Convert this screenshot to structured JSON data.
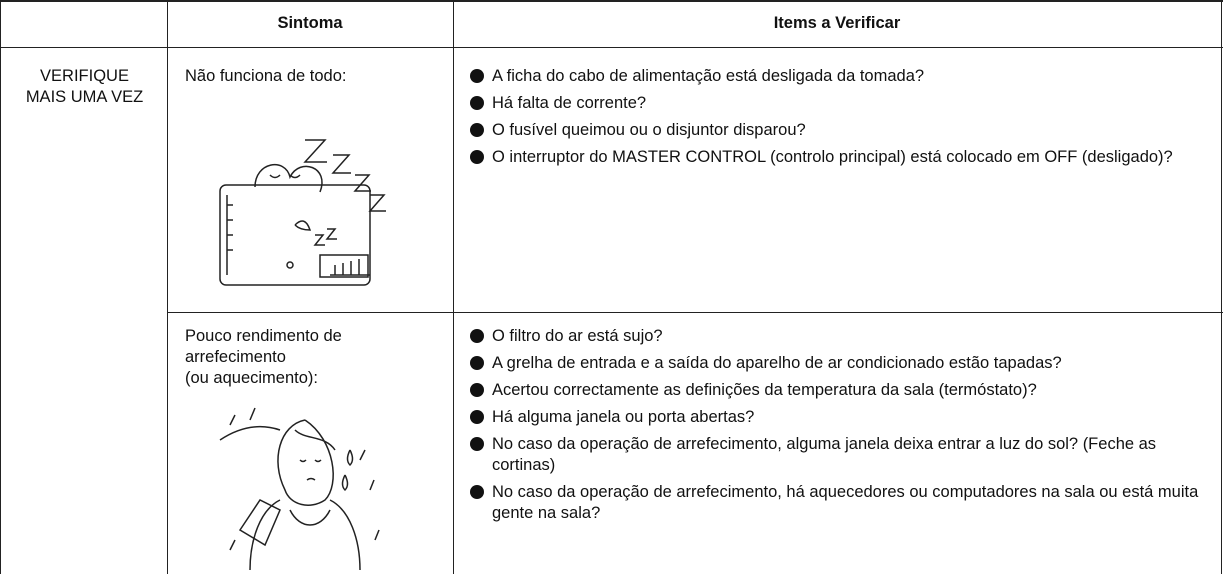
{
  "table": {
    "headers": {
      "symptom": "Sintoma",
      "items": "Items a Verificar"
    },
    "group_label": "VERIFIQUE MAIS UMA VEZ",
    "rows": [
      {
        "symptom": [
          "Não funciona de todo:"
        ],
        "items": [
          "A ficha do cabo de alimentação está desligada da tomada?",
          "Há falta de corrente?",
          "O fusível queimou ou o disjuntor disparou?",
          "O interruptor do MASTER CONTROL (controlo principal) está colocado em OFF (desligado)?"
        ]
      },
      {
        "symptom": [
          "Pouco rendimento de",
          "arrefecimento",
          "(ou aquecimento):"
        ],
        "items": [
          "O filtro do ar está sujo?",
          "A grelha de entrada e a saída do aparelho de ar condicionado estão tapadas?",
          "Acertou correctamente as definições da temperatura da sala (termóstato)?",
          "Há alguma janela ou porta abertas?",
          "No caso da operação de arrefecimento, alguma janela deixa entrar a luz do sol? (Feche as cortinas)",
          "No caso da operação de arrefecimento, há aquecedores ou computadores na sala ou está muita gente na sala?"
        ]
      }
    ]
  }
}
